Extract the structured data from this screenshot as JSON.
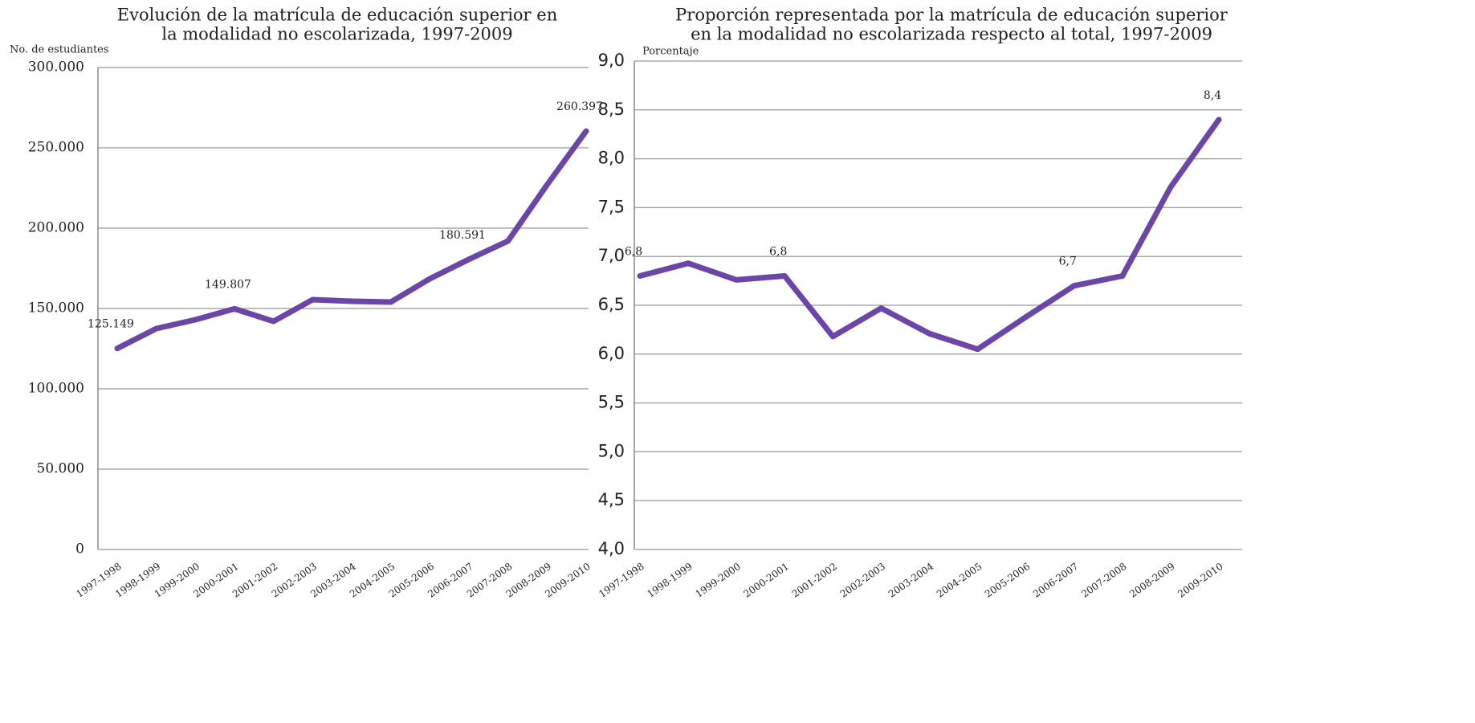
{
  "chart_data": [
    {
      "type": "line",
      "title": [
        "Evolución de la matrícula de educación superior en",
        "la modalidad no escolarizada, 1997-2009"
      ],
      "y_label": "No. de estudiantes",
      "categories": [
        "1997-1998",
        "1998-1999",
        "1999-2000",
        "2000-2001",
        "2001-2002",
        "2002-2003",
        "2003-2004",
        "2004-2005",
        "2005-2006",
        "2006-2007",
        "2007-2008",
        "2008-2009",
        "2009-2010"
      ],
      "series": [
        {
          "name": "Matrícula",
          "color": "#6b46a8",
          "values": [
            125149,
            137500,
            143000,
            149807,
            142000,
            155500,
            154500,
            154000,
            168500,
            180591,
            192000,
            227000,
            260397
          ],
          "value_labels": [
            "125.149",
            null,
            null,
            "149.807",
            null,
            null,
            null,
            null,
            null,
            "180.591",
            null,
            null,
            "260.397"
          ]
        }
      ],
      "ylim": [
        0,
        300000
      ],
      "yticks": [
        0,
        {
          "value": 50000,
          "label": "50.000"
        },
        {
          "value": 100000,
          "label": "100.000"
        },
        {
          "value": 150000,
          "label": "150.000"
        },
        {
          "value": 200000,
          "label": "200.000"
        },
        {
          "value": 250000,
          "label": "250.000"
        },
        {
          "value": 300000,
          "label": "300.000"
        }
      ],
      "grid": true
    },
    {
      "type": "line",
      "title": [
        "Proporción representada por la matrícula de educación superior",
        "en la modalidad no escolarizada respecto al total, 1997-2009"
      ],
      "y_label": "Porcentaje",
      "categories": [
        "1997-1998",
        "1998-1999",
        "1999-2000",
        "2000-2001",
        "2001-2002",
        "2002-2003",
        "2003-2004",
        "2004-2005",
        "2005-2006",
        "2006-2007",
        "2007-2008",
        "2008-2009",
        "2009-2010"
      ],
      "series": [
        {
          "name": "Porcentaje",
          "color": "#6b46a8",
          "values": [
            6.8,
            6.93,
            6.76,
            6.8,
            6.18,
            6.47,
            6.21,
            6.05,
            6.38,
            6.7,
            6.8,
            7.71,
            8.4
          ],
          "value_labels": [
            "6,8",
            null,
            null,
            "6,8",
            null,
            null,
            null,
            null,
            null,
            "6,7",
            null,
            null,
            "8,4"
          ]
        }
      ],
      "ylim": [
        4,
        9
      ],
      "yticks": [
        {
          "value": 4,
          "label": "4,0"
        },
        {
          "value": 4.5,
          "label": "4,5"
        },
        {
          "value": 5,
          "label": "5,0"
        },
        {
          "value": 5.5,
          "label": "5,5"
        },
        {
          "value": 6,
          "label": "6,0"
        },
        {
          "value": 6.5,
          "label": "6,5"
        },
        {
          "value": 7,
          "label": "7,0"
        },
        {
          "value": 7.5,
          "label": "7,5"
        },
        {
          "value": 8,
          "label": "8,0"
        },
        {
          "value": 8.5,
          "label": "8,5"
        },
        {
          "value": 9,
          "label": "9,0"
        }
      ],
      "grid": true
    }
  ]
}
